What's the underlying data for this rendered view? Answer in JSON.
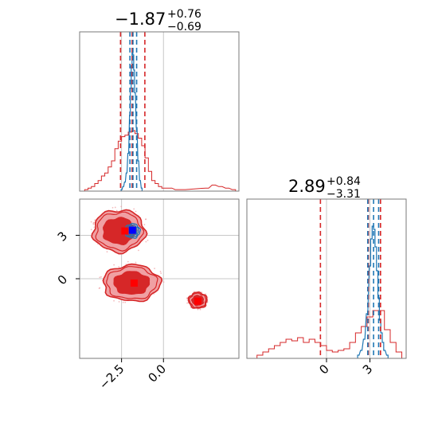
{
  "chart_data": {
    "type": "corner",
    "parameters": [
      "x",
      "y"
    ],
    "colors": {
      "red": "#d62728",
      "blue": "#1f77b4",
      "red_fill_light": "#f0a0a3",
      "red_fill_dark": "#d62728",
      "grid": "#c8c8c8",
      "axis": "#7a7a7a",
      "blue_marker": "#0000ff",
      "red_marker": "#ff0000"
    },
    "titles": [
      {
        "param": "x",
        "median": "−1.87",
        "upper": "+0.76",
        "lower": "−0.69"
      },
      {
        "param": "y",
        "median": "2.89",
        "upper": "+0.84",
        "lower": "−3.31"
      }
    ],
    "x_range": [
      -5.0,
      4.5
    ],
    "y_range": [
      -5.5,
      5.5
    ],
    "x_ticks": [
      {
        "value": -2.5,
        "label": "−2.5"
      },
      {
        "value": 0.0,
        "label": "0.0"
      }
    ],
    "y_ticks": [
      {
        "value": 0,
        "label": "0"
      },
      {
        "value": 3,
        "label": "3"
      }
    ],
    "marginal_x": {
      "red_quantiles": [
        -2.56,
        -1.87,
        -1.11
      ],
      "blue_quantiles": [
        -2.0,
        -1.82,
        -1.6
      ],
      "red_hist": [
        {
          "x": -4.6,
          "h": 0.01
        },
        {
          "x": -4.4,
          "h": 0.02
        },
        {
          "x": -4.2,
          "h": 0.03
        },
        {
          "x": -4.0,
          "h": 0.05
        },
        {
          "x": -3.8,
          "h": 0.07
        },
        {
          "x": -3.6,
          "h": 0.1
        },
        {
          "x": -3.4,
          "h": 0.12
        },
        {
          "x": -3.2,
          "h": 0.16
        },
        {
          "x": -3.0,
          "h": 0.2
        },
        {
          "x": -2.8,
          "h": 0.28
        },
        {
          "x": -2.6,
          "h": 0.33
        },
        {
          "x": -2.4,
          "h": 0.36
        },
        {
          "x": -2.2,
          "h": 0.37
        },
        {
          "x": -2.0,
          "h": 0.39
        },
        {
          "x": -1.8,
          "h": 0.4
        },
        {
          "x": -1.6,
          "h": 0.38
        },
        {
          "x": -1.4,
          "h": 0.35
        },
        {
          "x": -1.2,
          "h": 0.3
        },
        {
          "x": -1.0,
          "h": 0.22
        },
        {
          "x": -0.8,
          "h": 0.13
        },
        {
          "x": -0.6,
          "h": 0.07
        },
        {
          "x": -0.4,
          "h": 0.05
        },
        {
          "x": -0.2,
          "h": 0.03
        },
        {
          "x": 0.0,
          "h": 0.02
        },
        {
          "x": 0.4,
          "h": 0.02
        },
        {
          "x": 0.8,
          "h": 0.01
        },
        {
          "x": 1.2,
          "h": 0.01
        },
        {
          "x": 2.6,
          "h": 0.02
        },
        {
          "x": 3.0,
          "h": 0.04
        },
        {
          "x": 3.4,
          "h": 0.03
        },
        {
          "x": 3.8,
          "h": 0.02
        },
        {
          "x": 4.2,
          "h": 0.01
        }
      ],
      "blue_hist": [
        {
          "x": -2.5,
          "h": 0.01
        },
        {
          "x": -2.4,
          "h": 0.03
        },
        {
          "x": -2.3,
          "h": 0.06
        },
        {
          "x": -2.2,
          "h": 0.12
        },
        {
          "x": -2.1,
          "h": 0.25
        },
        {
          "x": -2.0,
          "h": 0.5
        },
        {
          "x": -1.95,
          "h": 0.68
        },
        {
          "x": -1.9,
          "h": 0.83
        },
        {
          "x": -1.85,
          "h": 0.92
        },
        {
          "x": -1.8,
          "h": 0.9
        },
        {
          "x": -1.75,
          "h": 0.8
        },
        {
          "x": -1.7,
          "h": 0.65
        },
        {
          "x": -1.6,
          "h": 0.42
        },
        {
          "x": -1.5,
          "h": 0.2
        },
        {
          "x": -1.4,
          "h": 0.07
        },
        {
          "x": -1.3,
          "h": 0.02
        }
      ]
    },
    "marginal_y": {
      "red_quantiles": [
        -0.42,
        2.89,
        3.73
      ],
      "blue_quantiles": [
        2.85,
        3.25,
        3.6
      ],
      "red_hist": [
        {
          "x": -4.6,
          "h": 0.02
        },
        {
          "x": -4.2,
          "h": 0.04
        },
        {
          "x": -3.8,
          "h": 0.06
        },
        {
          "x": -3.4,
          "h": 0.08
        },
        {
          "x": -3.0,
          "h": 0.1
        },
        {
          "x": -2.6,
          "h": 0.12
        },
        {
          "x": -2.2,
          "h": 0.11
        },
        {
          "x": -1.8,
          "h": 0.13
        },
        {
          "x": -1.4,
          "h": 0.1
        },
        {
          "x": -1.0,
          "h": 0.12
        },
        {
          "x": -0.6,
          "h": 0.1
        },
        {
          "x": -0.2,
          "h": 0.08
        },
        {
          "x": 0.2,
          "h": 0.05
        },
        {
          "x": 0.6,
          "h": 0.04
        },
        {
          "x": 1.0,
          "h": 0.05
        },
        {
          "x": 1.4,
          "h": 0.06
        },
        {
          "x": 1.8,
          "h": 0.1
        },
        {
          "x": 2.2,
          "h": 0.16
        },
        {
          "x": 2.6,
          "h": 0.2
        },
        {
          "x": 3.0,
          "h": 0.26
        },
        {
          "x": 3.4,
          "h": 0.3
        },
        {
          "x": 3.8,
          "h": 0.3
        },
        {
          "x": 4.2,
          "h": 0.18
        },
        {
          "x": 4.6,
          "h": 0.1
        },
        {
          "x": 5.0,
          "h": 0.04
        }
      ],
      "blue_hist": [
        {
          "x": 2.2,
          "h": 0.02
        },
        {
          "x": 2.4,
          "h": 0.05
        },
        {
          "x": 2.6,
          "h": 0.12
        },
        {
          "x": 2.8,
          "h": 0.28
        },
        {
          "x": 3.0,
          "h": 0.58
        },
        {
          "x": 3.1,
          "h": 0.75
        },
        {
          "x": 3.2,
          "h": 0.83
        },
        {
          "x": 3.3,
          "h": 0.81
        },
        {
          "x": 3.4,
          "h": 0.7
        },
        {
          "x": 3.5,
          "h": 0.55
        },
        {
          "x": 3.6,
          "h": 0.38
        },
        {
          "x": 3.7,
          "h": 0.24
        },
        {
          "x": 3.8,
          "h": 0.16
        },
        {
          "x": 3.9,
          "h": 0.1
        },
        {
          "x": 4.0,
          "h": 0.05
        },
        {
          "x": 4.2,
          "h": 0.02
        }
      ]
    },
    "joint": {
      "red_modes": [
        {
          "cx": -2.65,
          "cy": 3.3,
          "rx": 1.55,
          "ry": 1.45
        },
        {
          "cx": -1.9,
          "cy": -0.3,
          "rx": 1.7,
          "ry": 1.25
        },
        {
          "cx": 2.05,
          "cy": -1.5,
          "rx": 0.55,
          "ry": 0.55
        }
      ],
      "blue_mode": {
        "cx": -1.85,
        "cy": 3.3,
        "rx": 0.45,
        "ry": 0.5
      },
      "markers": [
        {
          "name": "red-marker-upper",
          "x": -2.3,
          "y": 3.3,
          "color": "red"
        },
        {
          "name": "blue-marker",
          "x": -1.85,
          "y": 3.35,
          "color": "blue"
        },
        {
          "name": "red-marker-lower",
          "x": -1.75,
          "y": -0.3,
          "color": "red"
        },
        {
          "name": "red-marker-right",
          "x": 2.05,
          "y": -1.55,
          "color": "red"
        }
      ]
    }
  }
}
